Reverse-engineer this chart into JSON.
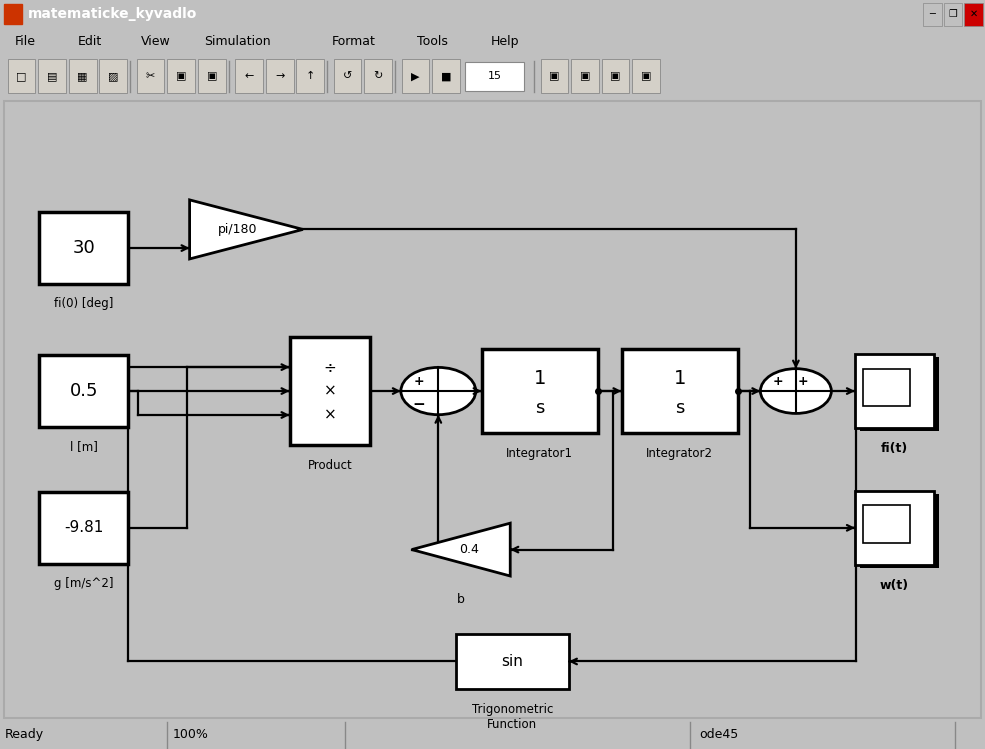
{
  "title": "matematicke_kyvadlo",
  "bg_color": "#c0c0c0",
  "diagram_bg": "#ffffff",
  "fig_width": 9.85,
  "fig_height": 7.49,
  "status_bar": [
    "Ready",
    "100%",
    "",
    "ode45"
  ],
  "menu_items": [
    "File",
    "Edit",
    "View",
    "Simulation",
    "Format",
    "Tools",
    "Help"
  ],
  "title_bar_color": "#0a246a",
  "menu_bar_color": "#d4d0c8",
  "toolbar_color": "#d4d0c8"
}
